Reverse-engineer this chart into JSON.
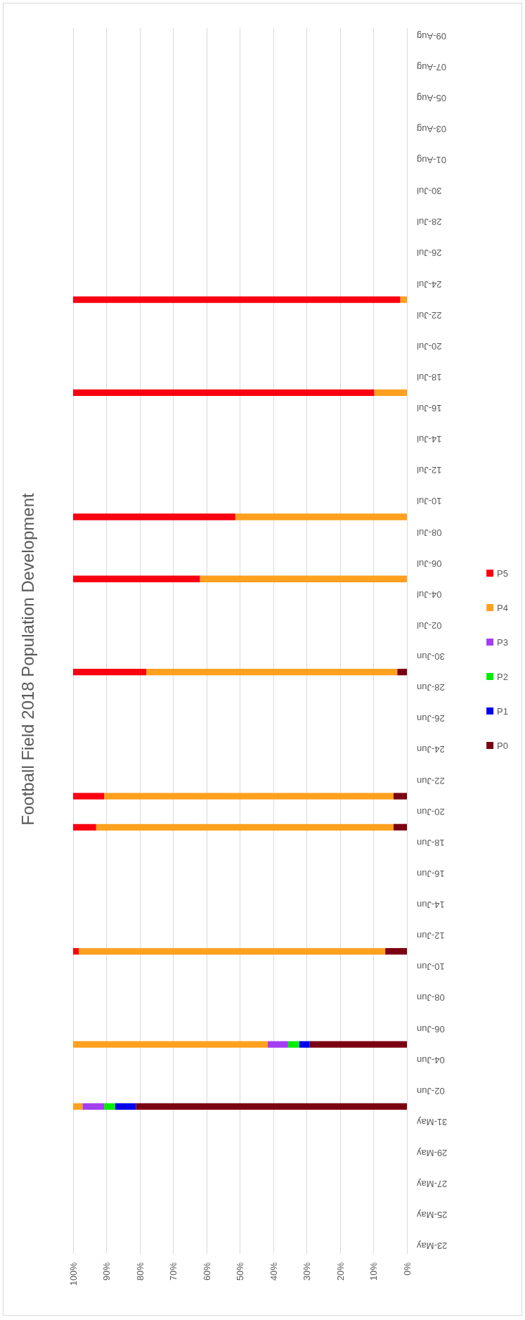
{
  "chart_data": {
    "type": "bar",
    "title": "Football Field 2018 Population Development",
    "orientation": "horizontal",
    "categories": [
      "09-Aug",
      null,
      "07-Aug",
      null,
      "05-Aug",
      null,
      "03-Aug",
      null,
      "01-Aug",
      null,
      "30-Jul",
      null,
      "28-Jul",
      null,
      "26-Jul",
      null,
      "24-Jul",
      null,
      "22-Jul",
      null,
      "20-Jul",
      null,
      "18-Jul",
      null,
      "16-Jul",
      null,
      "14-Jul",
      null,
      "12-Jul",
      null,
      "10-Jul",
      null,
      "08-Jul",
      null,
      "06-Jul",
      null,
      "04-Jul",
      null,
      "02-Jul",
      null,
      "30-Jun",
      null,
      "28-Jun",
      null,
      "26-Jun",
      null,
      "24-Jun",
      null,
      "22-Jun",
      null,
      "20-Jun",
      null,
      "18-Jun",
      null,
      "16-Jun",
      null,
      "14-Jun",
      null,
      "12-Jun",
      null,
      "10-Jun",
      null,
      "08-Jun",
      null,
      "06-Jun",
      null,
      "04-Jun",
      null,
      "02-Jun",
      null,
      "31-May",
      null,
      "29-May",
      null,
      "27-May",
      null,
      "25-May",
      null,
      "23-May"
    ],
    "stacked": true,
    "series": [
      {
        "name": "P0",
        "color": "#7b0011",
        "values": [
          null,
          null,
          null,
          null,
          null,
          null,
          null,
          null,
          null,
          null,
          null,
          null,
          null,
          null,
          null,
          null,
          null,
          null,
          null,
          null,
          null,
          null,
          null,
          null,
          null,
          null,
          null,
          null,
          null,
          null,
          null,
          null,
          null,
          null,
          null,
          null,
          null,
          null,
          null,
          null,
          null,
          2.9,
          null,
          null,
          null,
          null,
          null,
          null,
          null,
          4,
          null,
          4,
          null,
          null,
          null,
          null,
          null,
          null,
          null,
          6.5,
          null,
          null,
          null,
          null,
          null,
          29.1,
          null,
          null,
          null,
          81.2,
          null,
          null,
          null,
          null,
          null,
          null,
          null,
          null,
          null
        ]
      },
      {
        "name": "P1",
        "color": "#0000ee",
        "values": [
          null,
          null,
          null,
          null,
          null,
          null,
          null,
          null,
          null,
          null,
          null,
          null,
          null,
          null,
          null,
          null,
          null,
          null,
          null,
          null,
          null,
          null,
          null,
          null,
          null,
          null,
          null,
          null,
          null,
          null,
          null,
          null,
          null,
          null,
          null,
          null,
          null,
          null,
          null,
          null,
          null,
          null,
          null,
          null,
          null,
          null,
          null,
          null,
          null,
          null,
          null,
          null,
          null,
          null,
          null,
          null,
          null,
          null,
          null,
          null,
          null,
          null,
          null,
          null,
          null,
          3.2,
          null,
          null,
          null,
          6.2,
          null,
          null,
          null,
          null,
          null,
          null,
          null,
          null,
          null
        ]
      },
      {
        "name": "P2",
        "color": "#00ee00",
        "values": [
          null,
          null,
          null,
          null,
          null,
          null,
          null,
          null,
          null,
          null,
          null,
          null,
          null,
          null,
          null,
          null,
          null,
          null,
          null,
          null,
          null,
          null,
          null,
          null,
          null,
          null,
          null,
          null,
          null,
          null,
          null,
          null,
          null,
          null,
          null,
          null,
          null,
          null,
          null,
          null,
          null,
          null,
          null,
          null,
          null,
          null,
          null,
          null,
          null,
          null,
          null,
          null,
          null,
          null,
          null,
          null,
          null,
          null,
          null,
          null,
          null,
          null,
          null,
          null,
          null,
          3.3,
          null,
          null,
          null,
          3.3,
          null,
          null,
          null,
          null,
          null,
          null,
          null,
          null,
          null
        ]
      },
      {
        "name": "P3",
        "color": "#a23ff0",
        "values": [
          null,
          null,
          null,
          null,
          null,
          null,
          null,
          null,
          null,
          null,
          null,
          null,
          null,
          null,
          null,
          null,
          null,
          null,
          null,
          null,
          null,
          null,
          null,
          null,
          null,
          null,
          null,
          null,
          null,
          null,
          null,
          null,
          null,
          null,
          null,
          null,
          null,
          null,
          null,
          null,
          null,
          null,
          null,
          null,
          null,
          null,
          null,
          null,
          null,
          null,
          null,
          null,
          null,
          null,
          null,
          null,
          null,
          null,
          null,
          null,
          null,
          null,
          null,
          null,
          null,
          6.1,
          null,
          null,
          null,
          6.5,
          null,
          null,
          null,
          null,
          null,
          null,
          null,
          null,
          null
        ]
      },
      {
        "name": "P4",
        "color": "#ffa01e",
        "values": [
          null,
          null,
          null,
          null,
          null,
          null,
          null,
          null,
          null,
          null,
          null,
          null,
          null,
          null,
          null,
          null,
          null,
          2,
          null,
          null,
          null,
          null,
          null,
          9.8,
          null,
          null,
          null,
          null,
          null,
          null,
          null,
          51.4,
          null,
          null,
          null,
          62,
          null,
          null,
          null,
          null,
          null,
          75.2,
          null,
          null,
          null,
          null,
          null,
          null,
          null,
          86.7,
          null,
          89.1,
          null,
          null,
          null,
          null,
          null,
          null,
          null,
          91.8,
          null,
          null,
          null,
          null,
          null,
          58.3,
          null,
          null,
          null,
          2.8,
          null,
          null,
          null,
          null,
          null,
          null,
          null,
          null,
          null
        ]
      },
      {
        "name": "P5",
        "color": "#f80010",
        "values": [
          null,
          null,
          null,
          null,
          null,
          null,
          null,
          null,
          null,
          null,
          null,
          null,
          null,
          null,
          null,
          null,
          null,
          98,
          null,
          null,
          null,
          null,
          null,
          90.2,
          null,
          null,
          null,
          null,
          null,
          null,
          null,
          48.6,
          null,
          null,
          null,
          38,
          null,
          null,
          null,
          null,
          null,
          21.9,
          null,
          null,
          null,
          null,
          null,
          null,
          null,
          9.3,
          null,
          6.9,
          null,
          null,
          null,
          null,
          null,
          null,
          null,
          1.7,
          null,
          null,
          null,
          null,
          null,
          null,
          null,
          null,
          null,
          null,
          null,
          null,
          null,
          null,
          null,
          null,
          null,
          null,
          null
        ]
      }
    ],
    "xlim": [
      100,
      0
    ],
    "xticks": [
      {
        "value": 100,
        "label": "100%"
      },
      {
        "value": 90,
        "label": "90%"
      },
      {
        "value": 80,
        "label": "80%"
      },
      {
        "value": 70,
        "label": "70%"
      },
      {
        "value": 60,
        "label": "60%"
      },
      {
        "value": 50,
        "label": "50%"
      },
      {
        "value": 40,
        "label": "40%"
      },
      {
        "value": 30,
        "label": "30%"
      },
      {
        "value": 20,
        "label": "20%"
      },
      {
        "value": 10,
        "label": "10%"
      },
      {
        "value": 0,
        "label": "0%"
      }
    ],
    "grid": "x",
    "legend": "right"
  }
}
